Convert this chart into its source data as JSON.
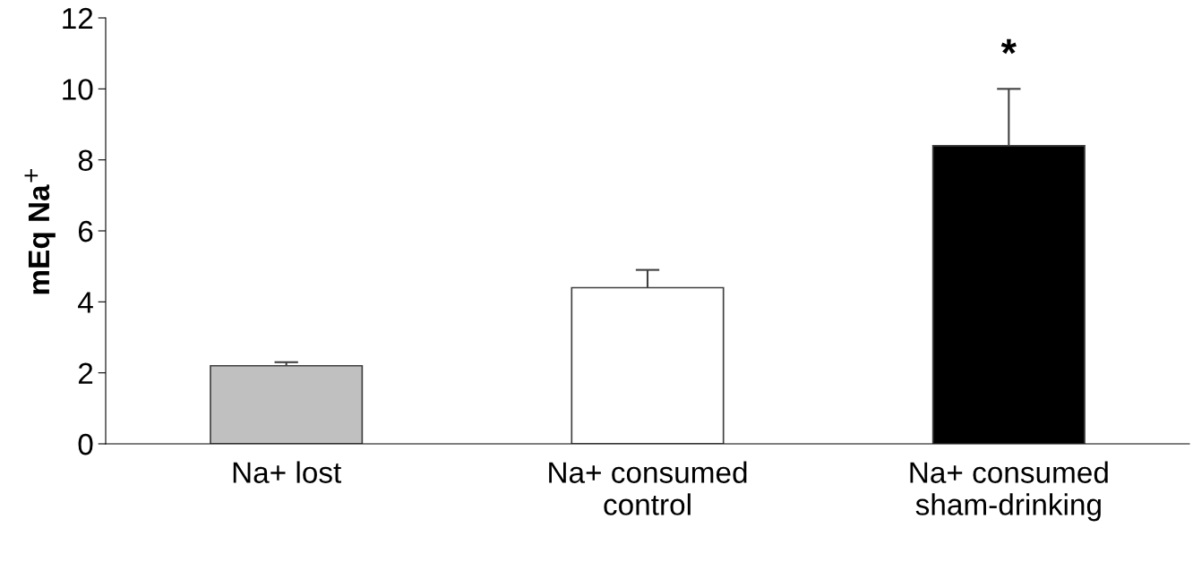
{
  "chart_data": {
    "type": "bar",
    "ylabel": "mEq Na$^{+}$",
    "categories": [
      "Na+ lost",
      "Na+ consumed\ncontrol",
      "Na+ consumed\nsham-drinking"
    ],
    "values": [
      2.2,
      4.4,
      8.4
    ],
    "colors": [
      "#c0c0c0",
      "#ffffff",
      "#000000"
    ],
    "errors": [
      [
        2.2,
        2.3
      ],
      [
        4.4,
        4.9
      ],
      [
        8.4,
        10.0
      ]
    ],
    "ylim": [
      0,
      12
    ],
    "yticks": [
      0,
      2,
      4,
      6,
      8,
      10,
      12
    ],
    "annotations": [
      "*"
    ],
    "grid": false,
    "legend": false
  }
}
